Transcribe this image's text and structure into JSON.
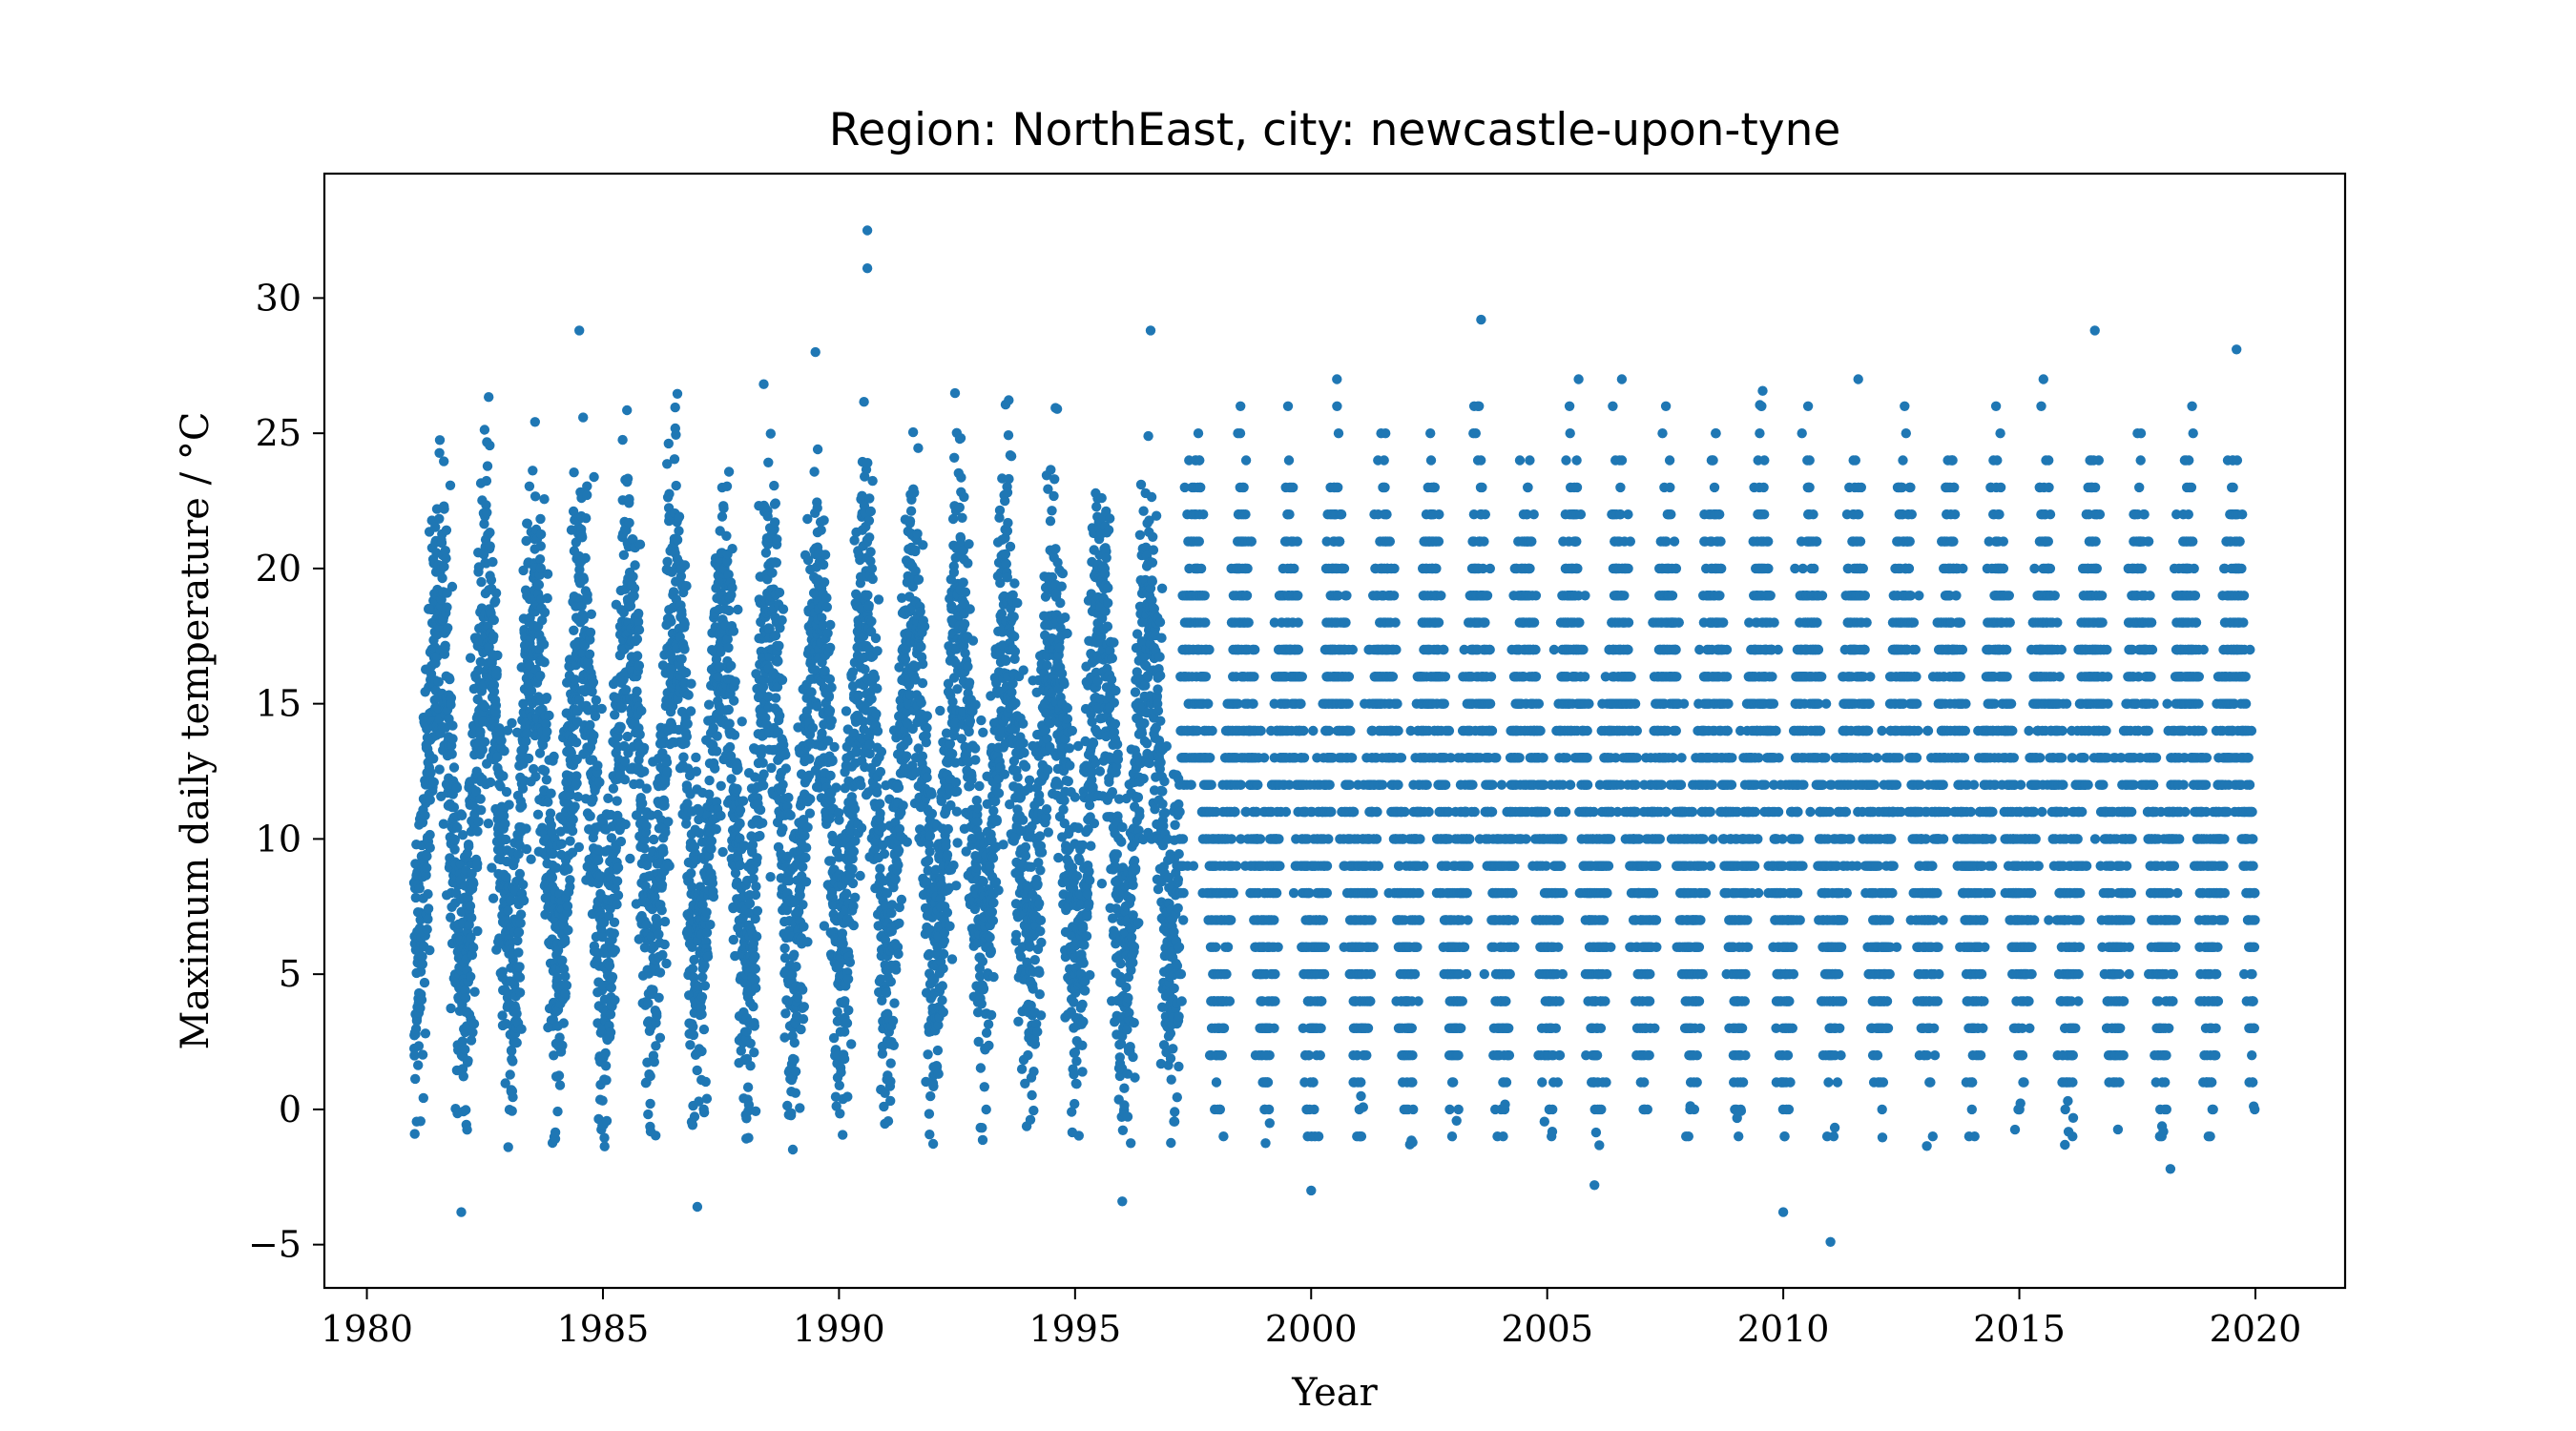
{
  "chart_data": {
    "type": "scatter",
    "title": "Region: NorthEast, city: newcastle-upon-tyne",
    "xlabel": "Year",
    "ylabel": "Maximum daily temperature / °C",
    "xlim": [
      1979.1,
      2021.9
    ],
    "ylim": [
      -6.6,
      34.6
    ],
    "xticks": [
      1980,
      1985,
      1990,
      1995,
      2000,
      2005,
      2010,
      2015,
      2020
    ],
    "yticks": [
      -5,
      0,
      5,
      10,
      15,
      20,
      25,
      30
    ],
    "xtick_labels": [
      "1980",
      "1985",
      "1990",
      "1995",
      "2000",
      "2005",
      "2010",
      "2015",
      "2020"
    ],
    "ytick_labels": [
      "−5",
      "0",
      "5",
      "10",
      "15",
      "20",
      "25",
      "30"
    ],
    "series": [
      {
        "color": "#1f77b4",
        "marker": "circle",
        "x_start": 1981.0,
        "x_end": 2019.99,
        "seasonal_cycle": {
          "mean_c": 11.8,
          "amplitude_c": 6.6,
          "peak_month": "July",
          "scatter_c": 3.2
        },
        "resolution_change_year": 1997.2,
        "notable_points": [
          {
            "x": 1990.6,
            "y": 32.5
          },
          {
            "x": 1990.6,
            "y": 31.1
          },
          {
            "x": 2003.6,
            "y": 29.2
          },
          {
            "x": 1984.5,
            "y": 28.8
          },
          {
            "x": 1996.6,
            "y": 28.8
          },
          {
            "x": 2016.6,
            "y": 28.8
          },
          {
            "x": 2019.6,
            "y": 28.1
          },
          {
            "x": 1989.5,
            "y": 28.0
          },
          {
            "x": 2011.0,
            "y": -4.9
          },
          {
            "x": 2010.0,
            "y": -3.8
          },
          {
            "x": 1982.0,
            "y": -3.8
          },
          {
            "x": 1987.0,
            "y": -3.6
          },
          {
            "x": 1996.0,
            "y": -3.4
          },
          {
            "x": 2000.0,
            "y": -3.0
          },
          {
            "x": 2006.0,
            "y": -2.8
          },
          {
            "x": 2018.2,
            "y": -2.2
          }
        ]
      }
    ],
    "grid": false,
    "legend": "none"
  }
}
